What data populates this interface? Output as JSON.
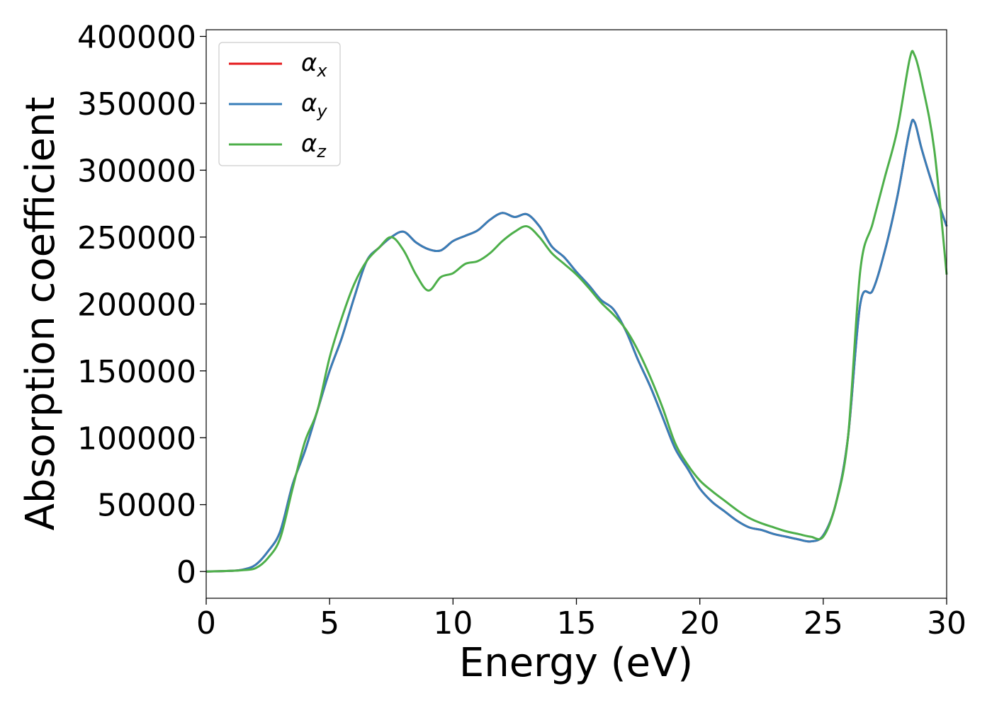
{
  "chart_data": {
    "type": "line",
    "title": "",
    "xlabel": "Energy (eV)",
    "ylabel": "Absorption coefficient",
    "xlim": [
      0,
      30
    ],
    "ylim": [
      -20000,
      405000
    ],
    "xticks": [
      0,
      5,
      10,
      15,
      20,
      25,
      30
    ],
    "yticks": [
      0,
      50000,
      100000,
      150000,
      200000,
      250000,
      300000,
      350000,
      400000
    ],
    "grid": false,
    "legend": "top-left",
    "series": [
      {
        "name": "α",
        "sub": "x",
        "color": "#e41a1c",
        "x": [
          0,
          1,
          1.5,
          2,
          2.5,
          3,
          3.5,
          4,
          4.5,
          5,
          5.5,
          6,
          6.5,
          7,
          7.5,
          8,
          8.5,
          9,
          9.5,
          10,
          10.5,
          11,
          11.5,
          12,
          12.5,
          13,
          13.5,
          14,
          14.5,
          15,
          15.5,
          16,
          16.5,
          17,
          17.5,
          18,
          18.5,
          19,
          19.5,
          20,
          20.5,
          21,
          21.5,
          22,
          22.5,
          23,
          23.5,
          24,
          24.5,
          25,
          25.5,
          26,
          26.5,
          27,
          27.5,
          28,
          28.5,
          28.7,
          29,
          29.5,
          30
        ],
        "values": [
          0,
          500,
          1500,
          5000,
          15000,
          30000,
          65000,
          90000,
          120000,
          150000,
          175000,
          205000,
          232000,
          242000,
          250000,
          254000,
          246000,
          241000,
          240000,
          247000,
          251000,
          255000,
          263000,
          268000,
          265000,
          267000,
          258000,
          243000,
          235000,
          224000,
          214000,
          203000,
          196000,
          180000,
          158000,
          138000,
          115000,
          92000,
          77000,
          62000,
          52000,
          45000,
          38000,
          33000,
          31000,
          28000,
          26000,
          24000,
          22500,
          27000,
          50000,
          100000,
          200000,
          210000,
          240000,
          280000,
          330000,
          336000,
          315000,
          285000,
          258000
        ]
      },
      {
        "name": "α",
        "sub": "y",
        "color": "#377eb8",
        "x": [
          0,
          1,
          1.5,
          2,
          2.5,
          3,
          3.5,
          4,
          4.5,
          5,
          5.5,
          6,
          6.5,
          7,
          7.5,
          8,
          8.5,
          9,
          9.5,
          10,
          10.5,
          11,
          11.5,
          12,
          12.5,
          13,
          13.5,
          14,
          14.5,
          15,
          15.5,
          16,
          16.5,
          17,
          17.5,
          18,
          18.5,
          19,
          19.5,
          20,
          20.5,
          21,
          21.5,
          22,
          22.5,
          23,
          23.5,
          24,
          24.5,
          25,
          25.5,
          26,
          26.5,
          27,
          27.5,
          28,
          28.5,
          28.7,
          29,
          29.5,
          30
        ],
        "values": [
          0,
          500,
          1500,
          5000,
          15000,
          30000,
          65000,
          90000,
          120000,
          150000,
          175000,
          205000,
          232000,
          242000,
          250000,
          254000,
          246000,
          241000,
          240000,
          247000,
          251000,
          255000,
          263000,
          268000,
          265000,
          267000,
          258000,
          243000,
          235000,
          224000,
          214000,
          203000,
          196000,
          180000,
          158000,
          138000,
          115000,
          92000,
          77000,
          62000,
          52000,
          45000,
          38000,
          33000,
          31000,
          28000,
          26000,
          24000,
          22500,
          27000,
          50000,
          100000,
          200000,
          210000,
          240000,
          280000,
          330000,
          336000,
          315000,
          285000,
          258000
        ]
      },
      {
        "name": "α",
        "sub": "z",
        "color": "#4daf4a",
        "x": [
          0,
          1,
          1.5,
          2,
          2.5,
          3,
          3.5,
          4,
          4.5,
          5,
          5.5,
          6,
          6.5,
          7,
          7.5,
          8,
          8.5,
          9,
          9.5,
          10,
          10.5,
          11,
          11.5,
          12,
          12.5,
          13,
          13.5,
          14,
          14.5,
          15,
          15.5,
          16,
          16.5,
          17,
          17.5,
          18,
          18.5,
          19,
          19.5,
          20,
          20.5,
          21,
          21.5,
          22,
          22.5,
          23,
          23.5,
          24,
          24.5,
          25,
          25.5,
          26,
          26.5,
          27,
          27.5,
          28,
          28.5,
          28.7,
          29,
          29.5,
          30
        ],
        "values": [
          0,
          500,
          1000,
          2500,
          10000,
          25000,
          62000,
          97000,
          120000,
          160000,
          190000,
          215000,
          232000,
          242000,
          250000,
          240000,
          222000,
          210000,
          220000,
          223000,
          230000,
          232000,
          238000,
          247000,
          254000,
          258000,
          250000,
          238000,
          230000,
          222000,
          212000,
          201000,
          192000,
          181000,
          165000,
          145000,
          122000,
          96000,
          80000,
          68000,
          60000,
          53000,
          46000,
          40000,
          36000,
          33000,
          30000,
          28000,
          26000,
          26000,
          50000,
          100000,
          225000,
          260000,
          295000,
          330000,
          383000,
          386000,
          365000,
          315000,
          222000
        ]
      }
    ]
  }
}
